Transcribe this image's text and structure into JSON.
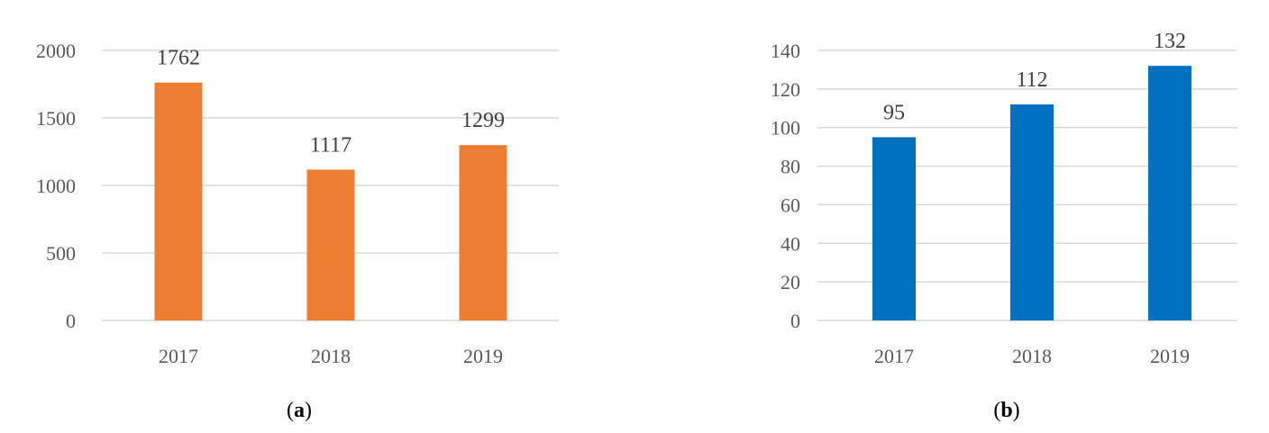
{
  "chart_data": [
    {
      "type": "bar",
      "panel_letter": "a",
      "title": "",
      "xlabel": "",
      "ylabel": "",
      "categories": [
        "2017",
        "2018",
        "2019"
      ],
      "values": [
        1762,
        1117,
        1299
      ],
      "data_labels": [
        "1762",
        "1117",
        "1299"
      ],
      "yticks": [
        0,
        500,
        1000,
        1500,
        2000
      ],
      "ylim": [
        0,
        2000
      ],
      "grid": true,
      "legend": "none",
      "bar_color": "#ED7D31"
    },
    {
      "type": "bar",
      "panel_letter": "b",
      "title": "",
      "xlabel": "",
      "ylabel": "",
      "categories": [
        "2017",
        "2018",
        "2019"
      ],
      "values": [
        95,
        112,
        132
      ],
      "data_labels": [
        "95",
        "112",
        "132"
      ],
      "yticks": [
        0,
        20,
        40,
        60,
        80,
        100,
        120,
        140
      ],
      "ylim": [
        0,
        140
      ],
      "grid": true,
      "legend": "none",
      "bar_color": "#0070C0"
    }
  ]
}
